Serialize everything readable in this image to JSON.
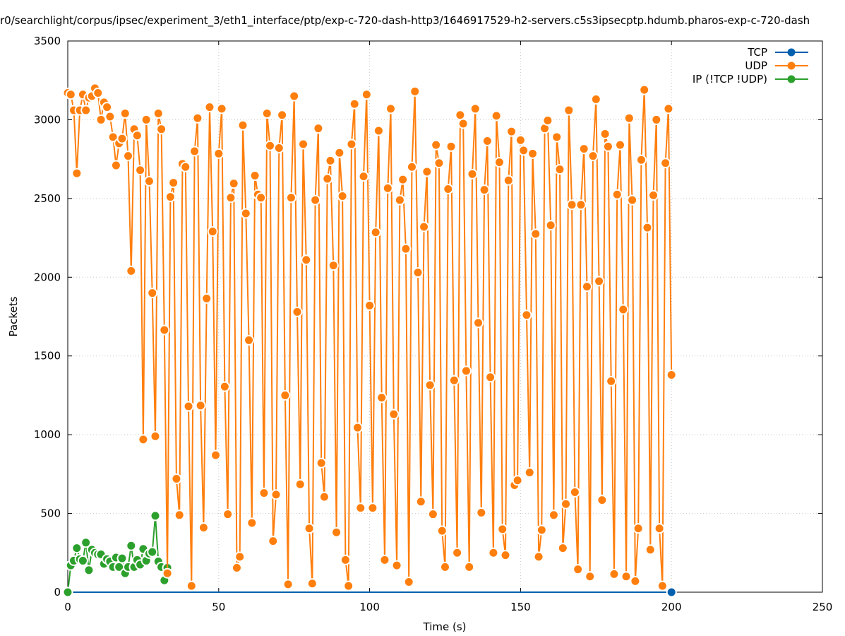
{
  "chart_data": {
    "type": "line",
    "title": "r0/searchlight/corpus/ipsec/experiment_3/eth1_interface/ptp/exp-c-720-dash-http3/1646917529-h2-servers.c5s3ipsecptp.hdumb.pharos-exp-c-720-dash",
    "xlabel": "Time (s)",
    "ylabel": "Packets",
    "xlim": [
      0,
      250
    ],
    "ylim": [
      0,
      3500
    ],
    "xticks": [
      "0",
      "50",
      "100",
      "150",
      "200",
      "250"
    ],
    "yticks": [
      "0",
      "500",
      "1000",
      "1500",
      "2000",
      "2500",
      "3000",
      "3500"
    ],
    "grid": true,
    "legend_position": "top-right",
    "series": [
      {
        "name": "TCP",
        "color": "#0060ad",
        "x": [
          0,
          200
        ],
        "y": [
          0,
          0
        ]
      },
      {
        "name": "UDP",
        "color": "#ff7f0e",
        "x": [
          0,
          1,
          2,
          3,
          4,
          5,
          6,
          7,
          8,
          9,
          10,
          11,
          12,
          13,
          14,
          15,
          16,
          17,
          18,
          19,
          20,
          21,
          22,
          23,
          24,
          25,
          26,
          27,
          28,
          29,
          30,
          31,
          32,
          33,
          34,
          35,
          36,
          37,
          38,
          39,
          40,
          41,
          42,
          43,
          44,
          45,
          46,
          47,
          48,
          49,
          50,
          51,
          52,
          53,
          54,
          55,
          56,
          57,
          58,
          59,
          60,
          61,
          62,
          63,
          64,
          65,
          66,
          67,
          68,
          69,
          70,
          71,
          72,
          73,
          74,
          75,
          76,
          77,
          78,
          79,
          80,
          81,
          82,
          83,
          84,
          85,
          86,
          87,
          88,
          89,
          90,
          91,
          92,
          93,
          94,
          95,
          96,
          97,
          98,
          99,
          100,
          101,
          102,
          103,
          104,
          105,
          106,
          107,
          108,
          109,
          110,
          111,
          112,
          113,
          114,
          115,
          116,
          117,
          118,
          119,
          120,
          121,
          122,
          123,
          124,
          125,
          126,
          127,
          128,
          129,
          130,
          131,
          132,
          133,
          134,
          135,
          136,
          137,
          138,
          139,
          140,
          141,
          142,
          143,
          144,
          145,
          146,
          147,
          148,
          149,
          150,
          151,
          152,
          153,
          154,
          155,
          156,
          157,
          158,
          159,
          160,
          161,
          162,
          163,
          164,
          165,
          166,
          167,
          168,
          169,
          170,
          171,
          172,
          173,
          174,
          175,
          176,
          177,
          178,
          179,
          180,
          181,
          182,
          183,
          184,
          185,
          186,
          187,
          188,
          189,
          190,
          191,
          192,
          193,
          194,
          195,
          196,
          197,
          198,
          199,
          200
        ],
        "y": [
          3170,
          3160,
          3060,
          2660,
          3060,
          3160,
          3060,
          3140,
          3150,
          3200,
          3170,
          3000,
          3110,
          3080,
          3020,
          2890,
          2710,
          2850,
          2880,
          3040,
          2770,
          2040,
          2940,
          2900,
          2680,
          970,
          3000,
          2610,
          1900,
          990,
          3040,
          2940,
          1665,
          120,
          2510,
          2600,
          720,
          490,
          2720,
          2700,
          1180,
          40,
          2800,
          3010,
          1185,
          410,
          1865,
          3080,
          2290,
          870,
          2785,
          3070,
          1305,
          495,
          2505,
          2595,
          155,
          225,
          2965,
          2405,
          1600,
          440,
          2645,
          2525,
          2505,
          630,
          3040,
          2835,
          325,
          620,
          2820,
          3030,
          1250,
          50,
          2505,
          3150,
          1780,
          685,
          2845,
          2110,
          405,
          55,
          2490,
          2945,
          820,
          605,
          2625,
          2740,
          2075,
          380,
          2790,
          2515,
          205,
          40,
          2845,
          3100,
          1045,
          535,
          2640,
          3160,
          1820,
          535,
          2285,
          2930,
          1235,
          205,
          2565,
          3070,
          1130,
          170,
          2490,
          2620,
          2180,
          65,
          2700,
          3180,
          2030,
          575,
          2320,
          2670,
          1315,
          495,
          2840,
          2725,
          390,
          160,
          2560,
          2830,
          1345,
          250,
          3030,
          2975,
          1405,
          160,
          2655,
          3070,
          1710,
          505,
          2555,
          2865,
          1365,
          250,
          3025,
          2730,
          400,
          235,
          2615,
          2925,
          680,
          710,
          2870,
          2805,
          1760,
          760,
          2785,
          2275,
          225,
          395,
          2945,
          2995,
          2330,
          490,
          2890,
          2685,
          280,
          560,
          3060,
          2460,
          635,
          145,
          2460,
          2815,
          1940,
          100,
          2770,
          3130,
          1975,
          585,
          2910,
          2830,
          1340,
          115,
          2525,
          2840,
          1795,
          100,
          3010,
          2490,
          70,
          405,
          2745,
          3190,
          2315,
          270,
          2520,
          3000,
          405,
          40,
          2725,
          3070,
          1380
        ]
      },
      {
        "name": "IP (!TCP  !UDP)",
        "color": "#2ca02c",
        "x": [
          0,
          1,
          2,
          3,
          4,
          5,
          6,
          7,
          8,
          9,
          10,
          11,
          12,
          13,
          14,
          15,
          16,
          17,
          18,
          19,
          20,
          21,
          22,
          23,
          24,
          25,
          26,
          27,
          28,
          29,
          30,
          31,
          32,
          33
        ],
        "y": [
          0,
          170,
          200,
          280,
          210,
          200,
          315,
          140,
          270,
          250,
          240,
          240,
          180,
          210,
          195,
          160,
          220,
          160,
          215,
          120,
          160,
          295,
          160,
          205,
          175,
          275,
          200,
          245,
          255,
          485,
          195,
          160,
          75,
          155
        ]
      }
    ]
  }
}
